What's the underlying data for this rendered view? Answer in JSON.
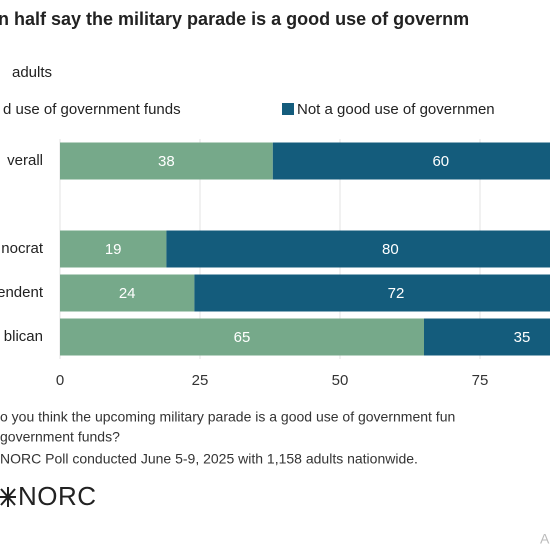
{
  "chart_data": {
    "type": "bar",
    "orientation": "horizontal",
    "stacked": true,
    "title": "n half say the military parade is a good use of governm",
    "subtitle": "adults",
    "categories": [
      "verall",
      null,
      "nocrat",
      "endent",
      "blican"
    ],
    "series": [
      {
        "name": "d use of government funds",
        "color": "#76a98a",
        "values": [
          38,
          null,
          19,
          24,
          65
        ]
      },
      {
        "name": "Not a good use of governmen",
        "color": "#145c7c",
        "values": [
          60,
          null,
          80,
          72,
          35
        ]
      }
    ],
    "xlim": [
      0,
      100
    ],
    "xticks": [
      0,
      25,
      50,
      75
    ],
    "grid": true,
    "notes": [
      "o you think the upcoming military parade is a good use of government fun",
      "government funds?",
      "NORC Poll conducted June 5-9, 2025 with 1,158 adults nationwide."
    ],
    "logo": "NORC",
    "corner_mark": "A"
  }
}
